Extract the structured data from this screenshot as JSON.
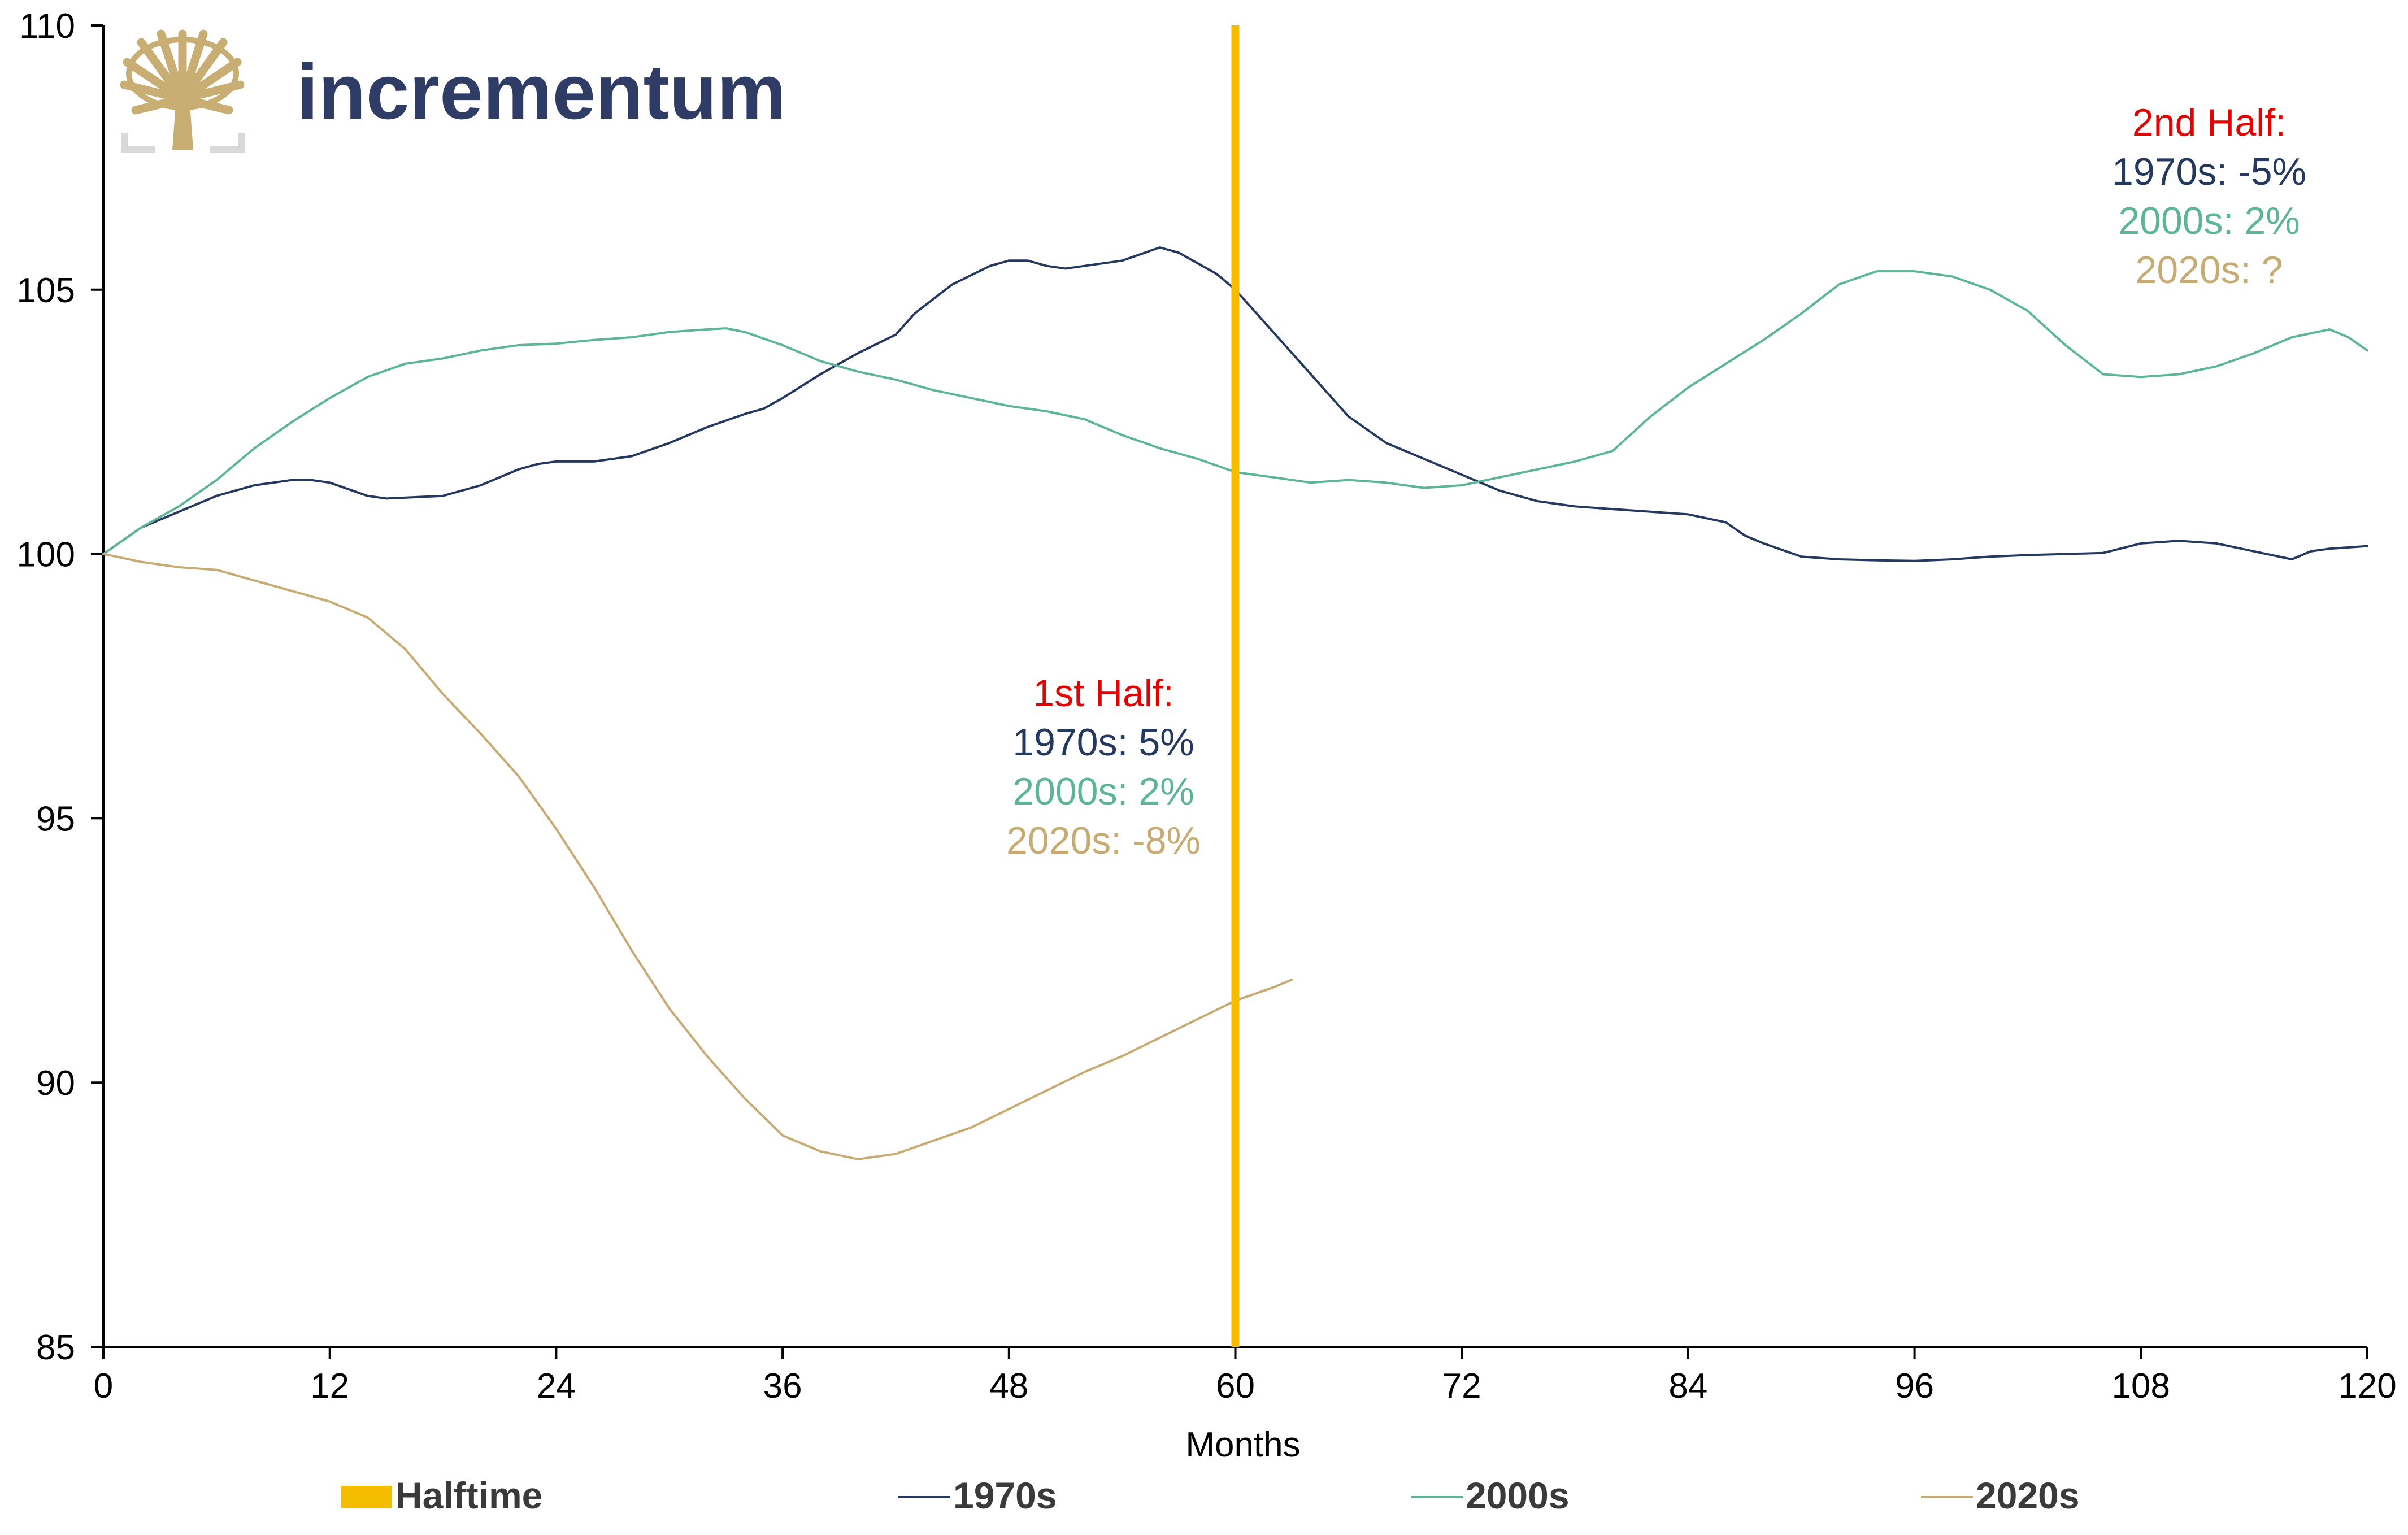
{
  "brand": {
    "name": "incrementum"
  },
  "colors": {
    "halftime": "#F4BD00",
    "s1970": "#253860",
    "s2000": "#5DB597",
    "s2020": "#C8AA73",
    "annotation_heading": "#E60000",
    "brand_text": "#2E3C66",
    "logo_tree": "#C9AE73",
    "logo_frame": "#D9D9D9"
  },
  "annotations": {
    "first_half": {
      "heading": "1st Half:",
      "line_1970": "1970s: 5%",
      "line_2000": "2000s: 2%",
      "line_2020": "2020s: -8%"
    },
    "second_half": {
      "heading": "2nd Half:",
      "line_1970": "1970s: -5%",
      "line_2000": "2000s: 2%",
      "line_2020": "2020s: ?"
    }
  },
  "chart_data": {
    "type": "line",
    "xlabel": "Months",
    "ylabel": "",
    "xlim": [
      0,
      120
    ],
    "ylim": [
      85,
      110
    ],
    "x_ticks": [
      0,
      12,
      24,
      36,
      48,
      60,
      72,
      84,
      96,
      108,
      120
    ],
    "y_ticks": [
      85,
      90,
      95,
      100,
      105,
      110
    ],
    "grid": false,
    "legend_position": "bottom",
    "halftime": {
      "name": "Halftime",
      "x": 60
    },
    "series": [
      {
        "name": "1970s",
        "color": "#253860",
        "points": [
          [
            0,
            100
          ],
          [
            2,
            100.5
          ],
          [
            4,
            100.8
          ],
          [
            6,
            101.1
          ],
          [
            8,
            101.3
          ],
          [
            10,
            101.4
          ],
          [
            11,
            101.4
          ],
          [
            12,
            101.35
          ],
          [
            14,
            101.1
          ],
          [
            15,
            101.05
          ],
          [
            18,
            101.1
          ],
          [
            20,
            101.3
          ],
          [
            22,
            101.6
          ],
          [
            23,
            101.7
          ],
          [
            24,
            101.75
          ],
          [
            26,
            101.75
          ],
          [
            28,
            101.85
          ],
          [
            30,
            102.1
          ],
          [
            32,
            102.4
          ],
          [
            34,
            102.65
          ],
          [
            35,
            102.75
          ],
          [
            36,
            102.95
          ],
          [
            38,
            103.4
          ],
          [
            40,
            103.8
          ],
          [
            42,
            104.15
          ],
          [
            43,
            104.55
          ],
          [
            45,
            105.1
          ],
          [
            47,
            105.45
          ],
          [
            48,
            105.55
          ],
          [
            49,
            105.55
          ],
          [
            50,
            105.45
          ],
          [
            51,
            105.4
          ],
          [
            52,
            105.45
          ],
          [
            54,
            105.55
          ],
          [
            56,
            105.8
          ],
          [
            57,
            105.7
          ],
          [
            58,
            105.5
          ],
          [
            59,
            105.3
          ],
          [
            60,
            105.0
          ],
          [
            62,
            104.2
          ],
          [
            64,
            103.4
          ],
          [
            66,
            102.6
          ],
          [
            68,
            102.1
          ],
          [
            70,
            101.8
          ],
          [
            72,
            101.5
          ],
          [
            74,
            101.2
          ],
          [
            76,
            101.0
          ],
          [
            78,
            100.9
          ],
          [
            80,
            100.85
          ],
          [
            82,
            100.8
          ],
          [
            84,
            100.75
          ],
          [
            86,
            100.6
          ],
          [
            87,
            100.35
          ],
          [
            88,
            100.2
          ],
          [
            90,
            99.95
          ],
          [
            92,
            99.9
          ],
          [
            94,
            99.88
          ],
          [
            96,
            99.87
          ],
          [
            98,
            99.9
          ],
          [
            100,
            99.95
          ],
          [
            102,
            99.98
          ],
          [
            104,
            100.0
          ],
          [
            106,
            100.02
          ],
          [
            108,
            100.2
          ],
          [
            110,
            100.25
          ],
          [
            112,
            100.2
          ],
          [
            114,
            100.05
          ],
          [
            116,
            99.9
          ],
          [
            117,
            100.05
          ],
          [
            118,
            100.1
          ],
          [
            120,
            100.15
          ]
        ]
      },
      {
        "name": "2000s",
        "color": "#5DB597",
        "points": [
          [
            0,
            100
          ],
          [
            2,
            100.5
          ],
          [
            4,
            100.9
          ],
          [
            6,
            101.4
          ],
          [
            8,
            102.0
          ],
          [
            10,
            102.5
          ],
          [
            12,
            102.95
          ],
          [
            14,
            103.35
          ],
          [
            16,
            103.6
          ],
          [
            18,
            103.7
          ],
          [
            20,
            103.85
          ],
          [
            22,
            103.95
          ],
          [
            24,
            103.98
          ],
          [
            26,
            104.05
          ],
          [
            28,
            104.1
          ],
          [
            30,
            104.2
          ],
          [
            32,
            104.25
          ],
          [
            33,
            104.27
          ],
          [
            34,
            104.2
          ],
          [
            36,
            103.95
          ],
          [
            38,
            103.65
          ],
          [
            40,
            103.45
          ],
          [
            42,
            103.3
          ],
          [
            44,
            103.1
          ],
          [
            46,
            102.95
          ],
          [
            48,
            102.8
          ],
          [
            50,
            102.7
          ],
          [
            52,
            102.55
          ],
          [
            54,
            102.25
          ],
          [
            56,
            102.0
          ],
          [
            58,
            101.8
          ],
          [
            60,
            101.55
          ],
          [
            62,
            101.45
          ],
          [
            64,
            101.35
          ],
          [
            66,
            101.4
          ],
          [
            68,
            101.35
          ],
          [
            70,
            101.25
          ],
          [
            72,
            101.3
          ],
          [
            74,
            101.45
          ],
          [
            76,
            101.6
          ],
          [
            78,
            101.75
          ],
          [
            80,
            101.95
          ],
          [
            82,
            102.6
          ],
          [
            84,
            103.15
          ],
          [
            86,
            103.6
          ],
          [
            88,
            104.05
          ],
          [
            90,
            104.55
          ],
          [
            92,
            105.1
          ],
          [
            94,
            105.35
          ],
          [
            96,
            105.35
          ],
          [
            98,
            105.25
          ],
          [
            100,
            105.0
          ],
          [
            102,
            104.6
          ],
          [
            104,
            103.95
          ],
          [
            106,
            103.4
          ],
          [
            108,
            103.35
          ],
          [
            110,
            103.4
          ],
          [
            112,
            103.55
          ],
          [
            114,
            103.8
          ],
          [
            116,
            104.1
          ],
          [
            118,
            104.25
          ],
          [
            119,
            104.1
          ],
          [
            120,
            103.85
          ]
        ]
      },
      {
        "name": "2020s",
        "color": "#C8AA73",
        "points": [
          [
            0,
            100
          ],
          [
            2,
            99.85
          ],
          [
            4,
            99.75
          ],
          [
            6,
            99.7
          ],
          [
            8,
            99.5
          ],
          [
            10,
            99.3
          ],
          [
            12,
            99.1
          ],
          [
            14,
            98.8
          ],
          [
            16,
            98.2
          ],
          [
            18,
            97.35
          ],
          [
            20,
            96.6
          ],
          [
            22,
            95.8
          ],
          [
            24,
            94.8
          ],
          [
            26,
            93.7
          ],
          [
            28,
            92.5
          ],
          [
            30,
            91.4
          ],
          [
            32,
            90.5
          ],
          [
            34,
            89.7
          ],
          [
            36,
            89.0
          ],
          [
            38,
            88.7
          ],
          [
            40,
            88.55
          ],
          [
            42,
            88.65
          ],
          [
            44,
            88.9
          ],
          [
            46,
            89.15
          ],
          [
            48,
            89.5
          ],
          [
            50,
            89.85
          ],
          [
            52,
            90.2
          ],
          [
            54,
            90.5
          ],
          [
            56,
            90.85
          ],
          [
            58,
            91.2
          ],
          [
            60,
            91.55
          ],
          [
            62,
            91.8
          ],
          [
            63,
            91.95
          ]
        ]
      }
    ]
  }
}
